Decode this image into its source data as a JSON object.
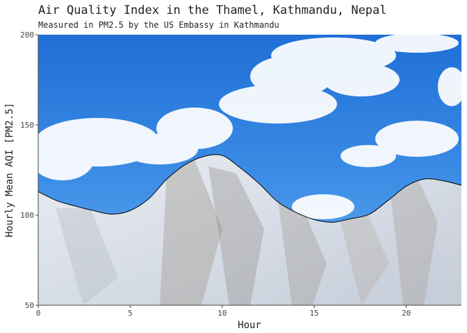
{
  "chart_data": {
    "type": "area",
    "title": "Air Quality Index in the Thamel, Kathmandu, Nepal",
    "subtitle": "Measured in PM2.5 by the US Embassy in Kathmandu",
    "xlabel": "Hour",
    "ylabel": "Hourly Mean AQI [PM2.5]",
    "xlim": [
      0,
      23
    ],
    "ylim": [
      50,
      200
    ],
    "x_ticks": [
      0,
      5,
      10,
      15,
      20
    ],
    "y_ticks": [
      50,
      100,
      150,
      200
    ],
    "x": [
      0,
      1,
      2,
      3,
      4,
      5,
      6,
      7,
      8,
      9,
      10,
      11,
      12,
      13,
      14,
      15,
      16,
      17,
      18,
      19,
      20,
      21,
      22,
      23
    ],
    "values": [
      113,
      108,
      105,
      102.5,
      100.5,
      102.5,
      109,
      120,
      128,
      132.5,
      133,
      126,
      117.5,
      107.5,
      101.5,
      97.5,
      96,
      98,
      100.5,
      108,
      116,
      120,
      119,
      116.5
    ],
    "grid": false,
    "background": "sky and snowy mountain photo"
  }
}
